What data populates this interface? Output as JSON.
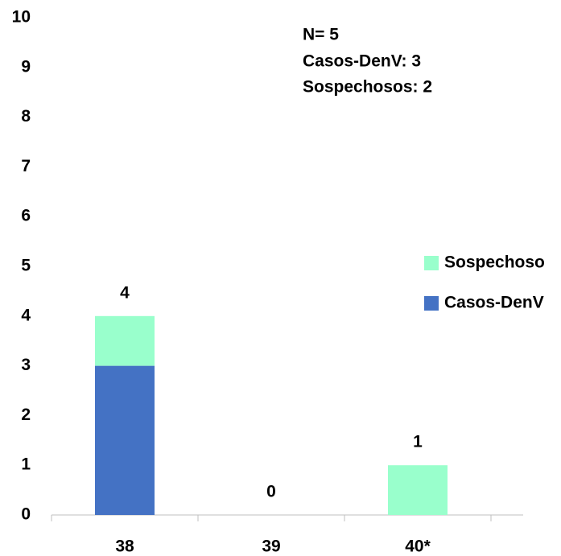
{
  "chart_data": {
    "type": "stacked_bar",
    "categories": [
      "38",
      "39",
      "40*"
    ],
    "series": [
      {
        "name": "Casos-DenV",
        "color": "#4472c4",
        "values": [
          3,
          0,
          0
        ]
      },
      {
        "name": "Sospechoso",
        "color": "#99ffcc",
        "values": [
          1,
          0,
          1
        ]
      }
    ],
    "total_labels": [
      4,
      0,
      1
    ],
    "annotations": [
      "N= 5",
      "Casos-DenV: 3",
      "Sospechosos: 2"
    ],
    "ylim": [
      0,
      10
    ],
    "yticks": [
      0,
      1,
      2,
      3,
      4,
      5,
      6,
      7,
      8,
      9,
      10
    ],
    "grid": false,
    "legend": "right"
  }
}
